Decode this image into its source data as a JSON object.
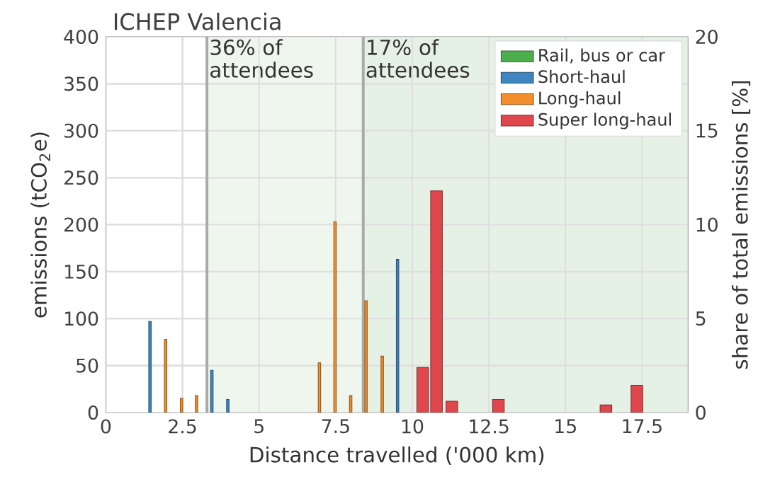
{
  "chart_data": {
    "type": "bar",
    "title": "ICHEP Valencia",
    "xlabel": "Distance travelled ('000 km)",
    "ylabel": "emissions (tCO$_{2}$e)",
    "y2label": "share of total emissions [%]",
    "series": [
      {
        "name": "Rail, bus or car",
        "color": "#4cae4c"
      },
      {
        "name": "Short-haul",
        "color": "#3f86c0",
        "x": [
          1.44,
          3.46,
          3.98,
          9.52
        ],
        "values": [
          97,
          45,
          14,
          163
        ]
      },
      {
        "name": "Long-haul",
        "color": "#f28e2b",
        "x": [
          1.95,
          2.47,
          2.96,
          6.97,
          7.48,
          7.99,
          8.49,
          9.02
        ],
        "values": [
          78,
          15,
          18,
          53,
          203,
          18,
          119,
          60
        ]
      },
      {
        "name": "Super long-haul",
        "color": "#e0474c",
        "x": [
          10.34,
          10.79,
          11.29,
          12.81,
          16.32,
          17.33
        ],
        "values": [
          48,
          236,
          12,
          14,
          8,
          29
        ]
      }
    ],
    "xlim": [
      0,
      19
    ],
    "xticks": [
      0,
      2.5,
      5,
      7.5,
      10,
      12.5,
      15,
      17.5
    ],
    "ylim": [
      0,
      400
    ],
    "yticks": [
      0,
      50,
      100,
      150,
      200,
      250,
      300,
      350,
      400
    ],
    "y2lim": [
      0,
      20
    ],
    "y2ticks": [
      0,
      5,
      10,
      15,
      20
    ],
    "ref_lines": [
      {
        "axis": "x",
        "value": 3.3,
        "color": "#a9aba9"
      },
      {
        "axis": "x",
        "value": 8.4,
        "color": "#a9aba9"
      }
    ],
    "bands": [
      {
        "axis": "x",
        "from": 3.3,
        "to": 8.4,
        "label": "36% of attendees",
        "color": "#eff6ee"
      },
      {
        "axis": "x",
        "from": 8.4,
        "to": 19,
        "label": "17% of attendees",
        "color": "#e6f1e5"
      }
    ],
    "grid": true,
    "legend": "top right"
  }
}
